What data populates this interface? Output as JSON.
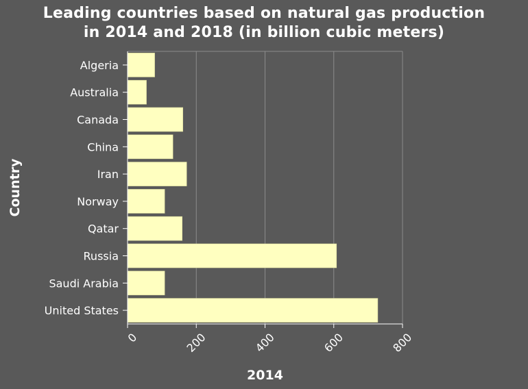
{
  "chart_data": {
    "type": "bar",
    "orientation": "horizontal",
    "title_lines": [
      "Leading countries based on natural gas production",
      "in 2014 and 2018 (in billion cubic meters)"
    ],
    "xlabel": "2014",
    "ylabel": "Country",
    "categories": [
      "Algeria",
      "Australia",
      "Canada",
      "China",
      "Iran",
      "Norway",
      "Qatar",
      "Russia",
      "Saudi Arabia",
      "United States"
    ],
    "series": [
      {
        "values": [
          79,
          55,
          161,
          132,
          172,
          108,
          159,
          608,
          108,
          728
        ]
      }
    ],
    "xlim": [
      0,
      800
    ],
    "xticks": [
      0,
      200,
      400,
      600,
      800
    ],
    "grid": "vertical",
    "colors": {
      "background": "#595959",
      "bar": "#ffffc0",
      "bar_stroke": "#d8d89a",
      "grid": "#8c8c8c",
      "text": "#ffffff"
    }
  }
}
